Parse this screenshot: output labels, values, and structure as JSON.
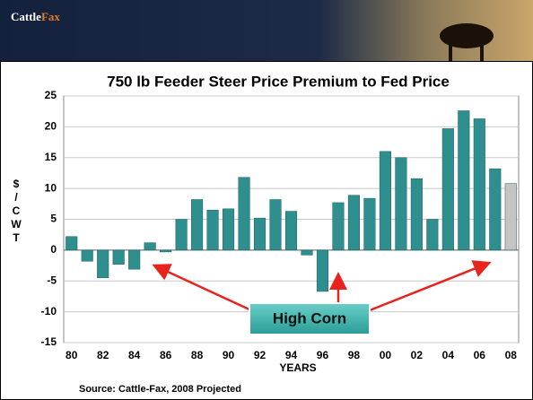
{
  "header": {
    "logo": [
      "Cattle",
      "Fax"
    ]
  },
  "chart_data": {
    "type": "bar",
    "title": "750 lb Feeder Steer  Price Premium to Fed Price",
    "xlabel": "YEARS",
    "ylabel": "$/CWT",
    "categories": [
      "80",
      null,
      "82",
      null,
      "84",
      null,
      "86",
      null,
      "88",
      null,
      "90",
      null,
      "92",
      null,
      "94",
      null,
      "96",
      null,
      "98",
      null,
      "00",
      null,
      "02",
      null,
      "04",
      null,
      "06",
      null,
      "08"
    ],
    "values": [
      2.2,
      -1.8,
      -4.5,
      -2.3,
      -3.1,
      1.2,
      -0.3,
      5.0,
      8.2,
      6.5,
      6.7,
      11.8,
      5.2,
      8.2,
      6.3,
      -0.8,
      -6.7,
      7.7,
      8.9,
      8.4,
      16.0,
      15.0,
      11.6,
      5.0,
      19.7,
      22.6,
      21.3,
      13.2,
      10.8
    ],
    "colors": [
      "#2f8f8f",
      "#2f8f8f",
      "#2f8f8f",
      "#2f8f8f",
      "#2f8f8f",
      "#2f8f8f",
      "#2f8f8f",
      "#2f8f8f",
      "#2f8f8f",
      "#2f8f8f",
      "#2f8f8f",
      "#2f8f8f",
      "#2f8f8f",
      "#2f8f8f",
      "#2f8f8f",
      "#2f8f8f",
      "#2f8f8f",
      "#2f8f8f",
      "#2f8f8f",
      "#2f8f8f",
      "#2f8f8f",
      "#2f8f8f",
      "#2f8f8f",
      "#2f8f8f",
      "#2f8f8f",
      "#2f8f8f",
      "#2f8f8f",
      "#2f8f8f",
      "#c4c4c4"
    ],
    "ylim": [
      -15,
      25
    ],
    "yticks": [
      -15,
      -10,
      -5,
      0,
      5,
      10,
      15,
      20,
      25
    ],
    "grid": true,
    "annotation": "High Corn",
    "source": "Source: Cattle-Fax, 2008 Projected"
  }
}
